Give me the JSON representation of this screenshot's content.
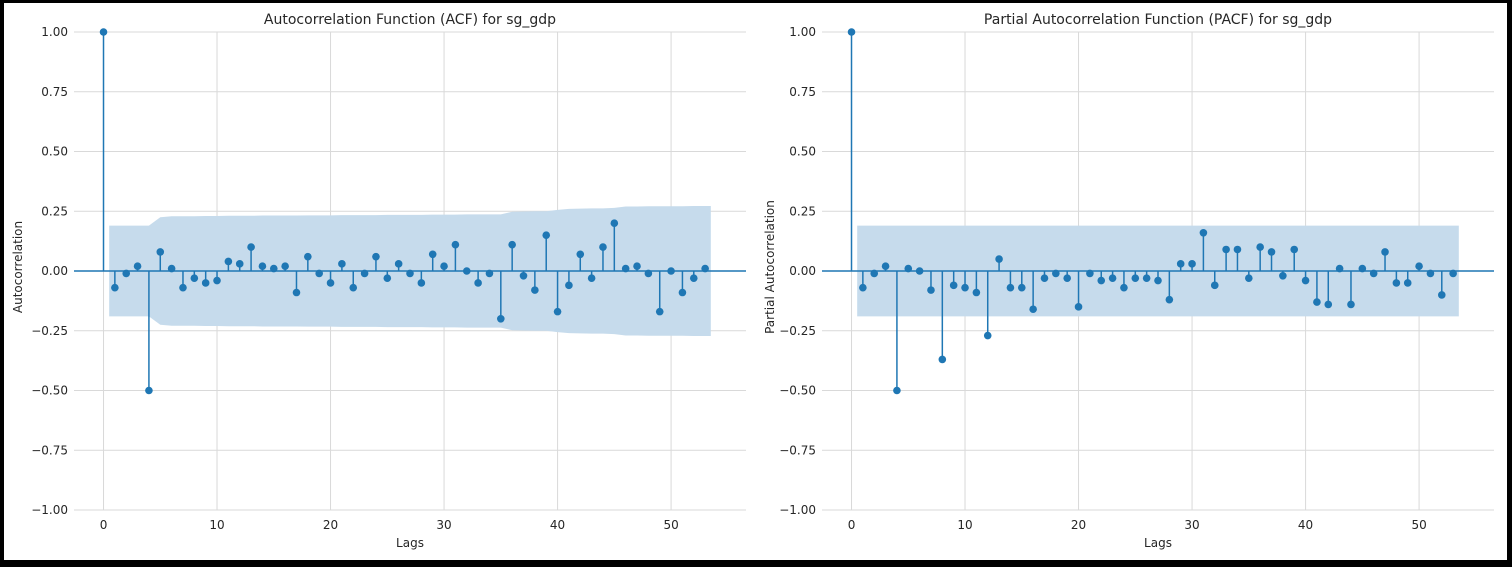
{
  "chart_data": [
    {
      "type": "stem",
      "title": "Autocorrelation Function (ACF) for sg_gdp",
      "xlabel": "Lags",
      "ylabel": "Autocorrelation",
      "xlim": [
        -2.6,
        56.6
      ],
      "ylim": [
        -1.0,
        1.0
      ],
      "xticks": [
        0,
        10,
        20,
        30,
        40,
        50
      ],
      "yticks": [
        1.0,
        0.75,
        0.5,
        0.25,
        0.0,
        -0.25,
        -0.5,
        -0.75,
        -1.0
      ],
      "ytick_labels": [
        "1.00",
        "0.75",
        "0.50",
        "0.25",
        "0.00",
        "−0.25",
        "−0.50",
        "−0.75",
        "−1.00"
      ],
      "grid": true,
      "color": "#1f77b4",
      "band_color": "#c6dbec",
      "lags": [
        0,
        1,
        2,
        3,
        4,
        5,
        6,
        7,
        8,
        9,
        10,
        11,
        12,
        13,
        14,
        15,
        16,
        17,
        18,
        19,
        20,
        21,
        22,
        23,
        24,
        25,
        26,
        27,
        28,
        29,
        30,
        31,
        32,
        33,
        34,
        35,
        36,
        37,
        38,
        39,
        40,
        41,
        42,
        43,
        44,
        45,
        46,
        47,
        48,
        49,
        50,
        51,
        52,
        53
      ],
      "values": [
        1.0,
        -0.07,
        -0.01,
        0.02,
        -0.5,
        0.08,
        0.01,
        -0.07,
        -0.03,
        -0.05,
        -0.04,
        0.04,
        0.03,
        0.1,
        0.02,
        0.01,
        0.02,
        -0.09,
        0.06,
        -0.01,
        -0.05,
        0.03,
        -0.07,
        -0.01,
        0.06,
        -0.03,
        0.03,
        -0.01,
        -0.05,
        0.07,
        0.02,
        0.11,
        0.0,
        -0.05,
        -0.01,
        -0.2,
        0.11,
        -0.02,
        -0.08,
        0.15,
        -0.17,
        -0.06,
        0.07,
        -0.03,
        0.1,
        0.2,
        0.01,
        0.02,
        -0.01,
        -0.17,
        0.0,
        -0.09,
        -0.03,
        0.01
      ],
      "confint_lags": [
        0.5,
        1,
        2,
        3,
        4,
        5,
        6,
        7,
        8,
        9,
        10,
        11,
        12,
        13,
        14,
        15,
        16,
        17,
        18,
        19,
        20,
        21,
        22,
        23,
        24,
        25,
        26,
        27,
        28,
        29,
        30,
        31,
        32,
        33,
        34,
        35,
        36,
        37,
        38,
        39,
        40,
        41,
        42,
        43,
        44,
        45,
        46,
        47,
        48,
        49,
        50,
        51,
        52,
        53.5
      ],
      "confint_upper": [
        0.19,
        0.19,
        0.19,
        0.19,
        0.19,
        0.225,
        0.229,
        0.229,
        0.229,
        0.23,
        0.23,
        0.231,
        0.231,
        0.231,
        0.232,
        0.232,
        0.232,
        0.232,
        0.233,
        0.233,
        0.233,
        0.234,
        0.234,
        0.234,
        0.234,
        0.235,
        0.235,
        0.235,
        0.235,
        0.236,
        0.236,
        0.236,
        0.237,
        0.237,
        0.237,
        0.237,
        0.248,
        0.249,
        0.25,
        0.25,
        0.256,
        0.26,
        0.261,
        0.262,
        0.262,
        0.264,
        0.27,
        0.27,
        0.271,
        0.271,
        0.271,
        0.271,
        0.272,
        0.272
      ]
    },
    {
      "type": "stem",
      "title": "Partial Autocorrelation Function (PACF) for sg_gdp",
      "xlabel": "Lags",
      "ylabel": "Partial Autocorrelation",
      "xlim": [
        -2.6,
        56.6
      ],
      "ylim": [
        -1.0,
        1.0
      ],
      "xticks": [
        0,
        10,
        20,
        30,
        40,
        50
      ],
      "yticks": [
        1.0,
        0.75,
        0.5,
        0.25,
        0.0,
        -0.25,
        -0.5,
        -0.75,
        -1.0
      ],
      "ytick_labels": [
        "1.00",
        "0.75",
        "0.50",
        "0.25",
        "0.00",
        "−0.25",
        "−0.50",
        "−0.75",
        "−1.00"
      ],
      "grid": true,
      "color": "#1f77b4",
      "band_color": "#c6dbec",
      "lags": [
        0,
        1,
        2,
        3,
        4,
        5,
        6,
        7,
        8,
        9,
        10,
        11,
        12,
        13,
        14,
        15,
        16,
        17,
        18,
        19,
        20,
        21,
        22,
        23,
        24,
        25,
        26,
        27,
        28,
        29,
        30,
        31,
        32,
        33,
        34,
        35,
        36,
        37,
        38,
        39,
        40,
        41,
        42,
        43,
        44,
        45,
        46,
        47,
        48,
        49,
        50,
        51,
        52,
        53
      ],
      "values": [
        1.0,
        -0.07,
        -0.01,
        0.02,
        -0.5,
        0.01,
        0.0,
        -0.08,
        -0.37,
        -0.06,
        -0.07,
        -0.09,
        -0.27,
        0.05,
        -0.07,
        -0.07,
        -0.16,
        -0.03,
        -0.01,
        -0.03,
        -0.15,
        -0.01,
        -0.04,
        -0.03,
        -0.07,
        -0.03,
        -0.03,
        -0.04,
        -0.12,
        0.03,
        0.03,
        0.16,
        -0.06,
        0.09,
        0.09,
        -0.03,
        0.1,
        0.08,
        -0.02,
        0.09,
        -0.04,
        -0.13,
        -0.14,
        0.01,
        -0.14,
        0.01,
        -0.01,
        0.08,
        -0.05,
        -0.05,
        0.02,
        -0.01,
        -0.1,
        -0.01
      ],
      "confint_lags": [
        0.5,
        53.5
      ],
      "confint_upper": [
        0.19,
        0.19
      ]
    }
  ]
}
